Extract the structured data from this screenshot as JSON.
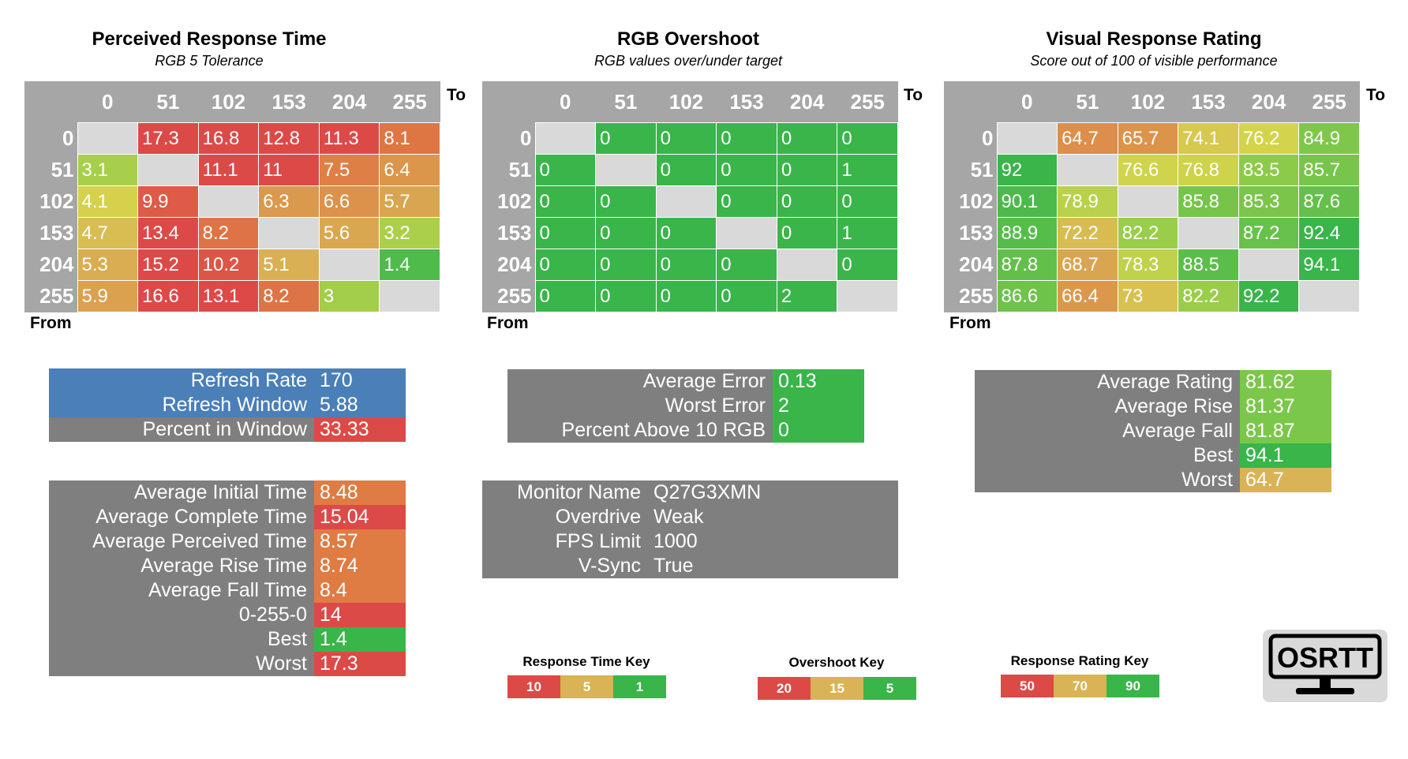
{
  "chart_data": [
    {
      "type": "heatmap",
      "title": "Perceived Response Time",
      "subtitle": "RGB 5 Tolerance",
      "xlabel": "To",
      "ylabel": "From",
      "x": [
        "0",
        "51",
        "102",
        "153",
        "204",
        "255"
      ],
      "y": [
        "0",
        "51",
        "102",
        "153",
        "204",
        "255"
      ],
      "values": [
        [
          "",
          "17.3",
          "16.8",
          "12.8",
          "11.3",
          "8.1"
        ],
        [
          "3.1",
          "",
          "11.1",
          "11",
          "7.5",
          "6.4"
        ],
        [
          "4.1",
          "9.9",
          "",
          "6.3",
          "6.6",
          "5.7"
        ],
        [
          "4.7",
          "13.4",
          "8.2",
          "",
          "5.6",
          "3.2"
        ],
        [
          "5.3",
          "15.2",
          "10.2",
          "5.1",
          "",
          "1.4"
        ],
        [
          "5.9",
          "16.6",
          "13.1",
          "8.2",
          "3",
          ""
        ]
      ]
    },
    {
      "type": "heatmap",
      "title": "RGB Overshoot",
      "subtitle": "RGB values over/under target",
      "xlabel": "To",
      "ylabel": "From",
      "x": [
        "0",
        "51",
        "102",
        "153",
        "204",
        "255"
      ],
      "y": [
        "0",
        "51",
        "102",
        "153",
        "204",
        "255"
      ],
      "values": [
        [
          "",
          "0",
          "0",
          "0",
          "0",
          "0"
        ],
        [
          "0",
          "",
          "0",
          "0",
          "0",
          "1"
        ],
        [
          "0",
          "0",
          "",
          "0",
          "0",
          "0"
        ],
        [
          "0",
          "0",
          "0",
          "",
          "0",
          "1"
        ],
        [
          "0",
          "0",
          "0",
          "0",
          "",
          "0"
        ],
        [
          "0",
          "0",
          "0",
          "0",
          "2",
          ""
        ]
      ]
    },
    {
      "type": "heatmap",
      "title": "Visual Response Rating",
      "subtitle": "Score out of 100 of visible performance",
      "xlabel": "To",
      "ylabel": "From",
      "x": [
        "0",
        "51",
        "102",
        "153",
        "204",
        "255"
      ],
      "y": [
        "0",
        "51",
        "102",
        "153",
        "204",
        "255"
      ],
      "values": [
        [
          "",
          "64.7",
          "65.7",
          "74.1",
          "76.2",
          "84.9"
        ],
        [
          "92",
          "",
          "76.6",
          "76.8",
          "83.5",
          "85.7"
        ],
        [
          "90.1",
          "78.9",
          "",
          "85.8",
          "85.3",
          "87.6"
        ],
        [
          "88.9",
          "72.2",
          "82.2",
          "",
          "87.2",
          "92.4"
        ],
        [
          "87.8",
          "68.7",
          "78.3",
          "88.5",
          "",
          "94.1"
        ],
        [
          "86.6",
          "66.4",
          "73",
          "82.2",
          "92.2",
          ""
        ]
      ]
    }
  ],
  "colors": {
    "red": "#dc4a48",
    "orange": "#de7c44",
    "amber": "#d9b355",
    "yellow": "#d6d44c",
    "lime": "#90cc4a",
    "green": "#39b54a",
    "grey": "#7f7f7f",
    "header_grey": "#a6a6a6",
    "diag": "#d9d9d9",
    "blue": "#4a7fb8"
  },
  "refresh_table": [
    {
      "label": "Refresh Rate",
      "value": "170",
      "color": "#4a7fb8",
      "label_color": "#4a7fb8"
    },
    {
      "label": "Refresh Window",
      "value": "5.88",
      "color": "#4a7fb8",
      "label_color": "#4a7fb8"
    },
    {
      "label": "Percent in Window",
      "value": "33.33",
      "color": "#dc4a48",
      "label_color": "#7f7f7f"
    }
  ],
  "time_table": [
    {
      "label": "Average Initial Time",
      "value": "8.48",
      "color": "#de7c44"
    },
    {
      "label": "Average Complete Time",
      "value": "15.04",
      "color": "#dc4a48"
    },
    {
      "label": "Average Perceived Time",
      "value": "8.57",
      "color": "#de7c44"
    },
    {
      "label": "Average Rise Time",
      "value": "8.74",
      "color": "#de7c44"
    },
    {
      "label": "Average Fall Time",
      "value": "8.4",
      "color": "#de7c44"
    },
    {
      "label": "0-255-0",
      "value": "14",
      "color": "#dc4a48"
    },
    {
      "label": "Best",
      "value": "1.4",
      "color": "#39b54a"
    },
    {
      "label": "Worst",
      "value": "17.3",
      "color": "#dc4a48"
    }
  ],
  "error_table": [
    {
      "label": "Average Error",
      "value": "0.13",
      "color": "#39b54a"
    },
    {
      "label": "Worst Error",
      "value": "2",
      "color": "#39b54a"
    },
    {
      "label": "Percent Above 10 RGB",
      "value": "0",
      "color": "#39b54a"
    }
  ],
  "monitor_table": [
    {
      "label": "Monitor Name",
      "value": "Q27G3XMN",
      "color": "#7f7f7f"
    },
    {
      "label": "Overdrive",
      "value": "Weak",
      "color": "#7f7f7f"
    },
    {
      "label": "FPS Limit",
      "value": "1000",
      "color": "#7f7f7f"
    },
    {
      "label": "V-Sync",
      "value": "True",
      "color": "#7f7f7f"
    }
  ],
  "rating_table": [
    {
      "label": "Average Rating",
      "value": "81.62",
      "color": "#7ac74a"
    },
    {
      "label": "Average Rise",
      "value": "81.37",
      "color": "#7ac74a"
    },
    {
      "label": "Average Fall",
      "value": "81.87",
      "color": "#7ac74a"
    },
    {
      "label": "Best",
      "value": "94.1",
      "color": "#39b54a"
    },
    {
      "label": "Worst",
      "value": "64.7",
      "color": "#d9b355"
    }
  ],
  "keys": [
    {
      "title": "Response Time Key",
      "items": [
        {
          "label": "10",
          "color": "#dc4a48"
        },
        {
          "label": "5",
          "color": "#d9b355"
        },
        {
          "label": "1",
          "color": "#39b54a"
        }
      ]
    },
    {
      "title": "Overshoot Key",
      "items": [
        {
          "label": "20",
          "color": "#dc4a48"
        },
        {
          "label": "15",
          "color": "#d9b355"
        },
        {
          "label": "5",
          "color": "#39b54a"
        }
      ]
    },
    {
      "title": "Response Rating Key",
      "items": [
        {
          "label": "50",
          "color": "#dc4a48"
        },
        {
          "label": "70",
          "color": "#d9b355"
        },
        {
          "label": "90",
          "color": "#39b54a"
        }
      ]
    }
  ],
  "logo": {
    "text": "OSRTT"
  }
}
